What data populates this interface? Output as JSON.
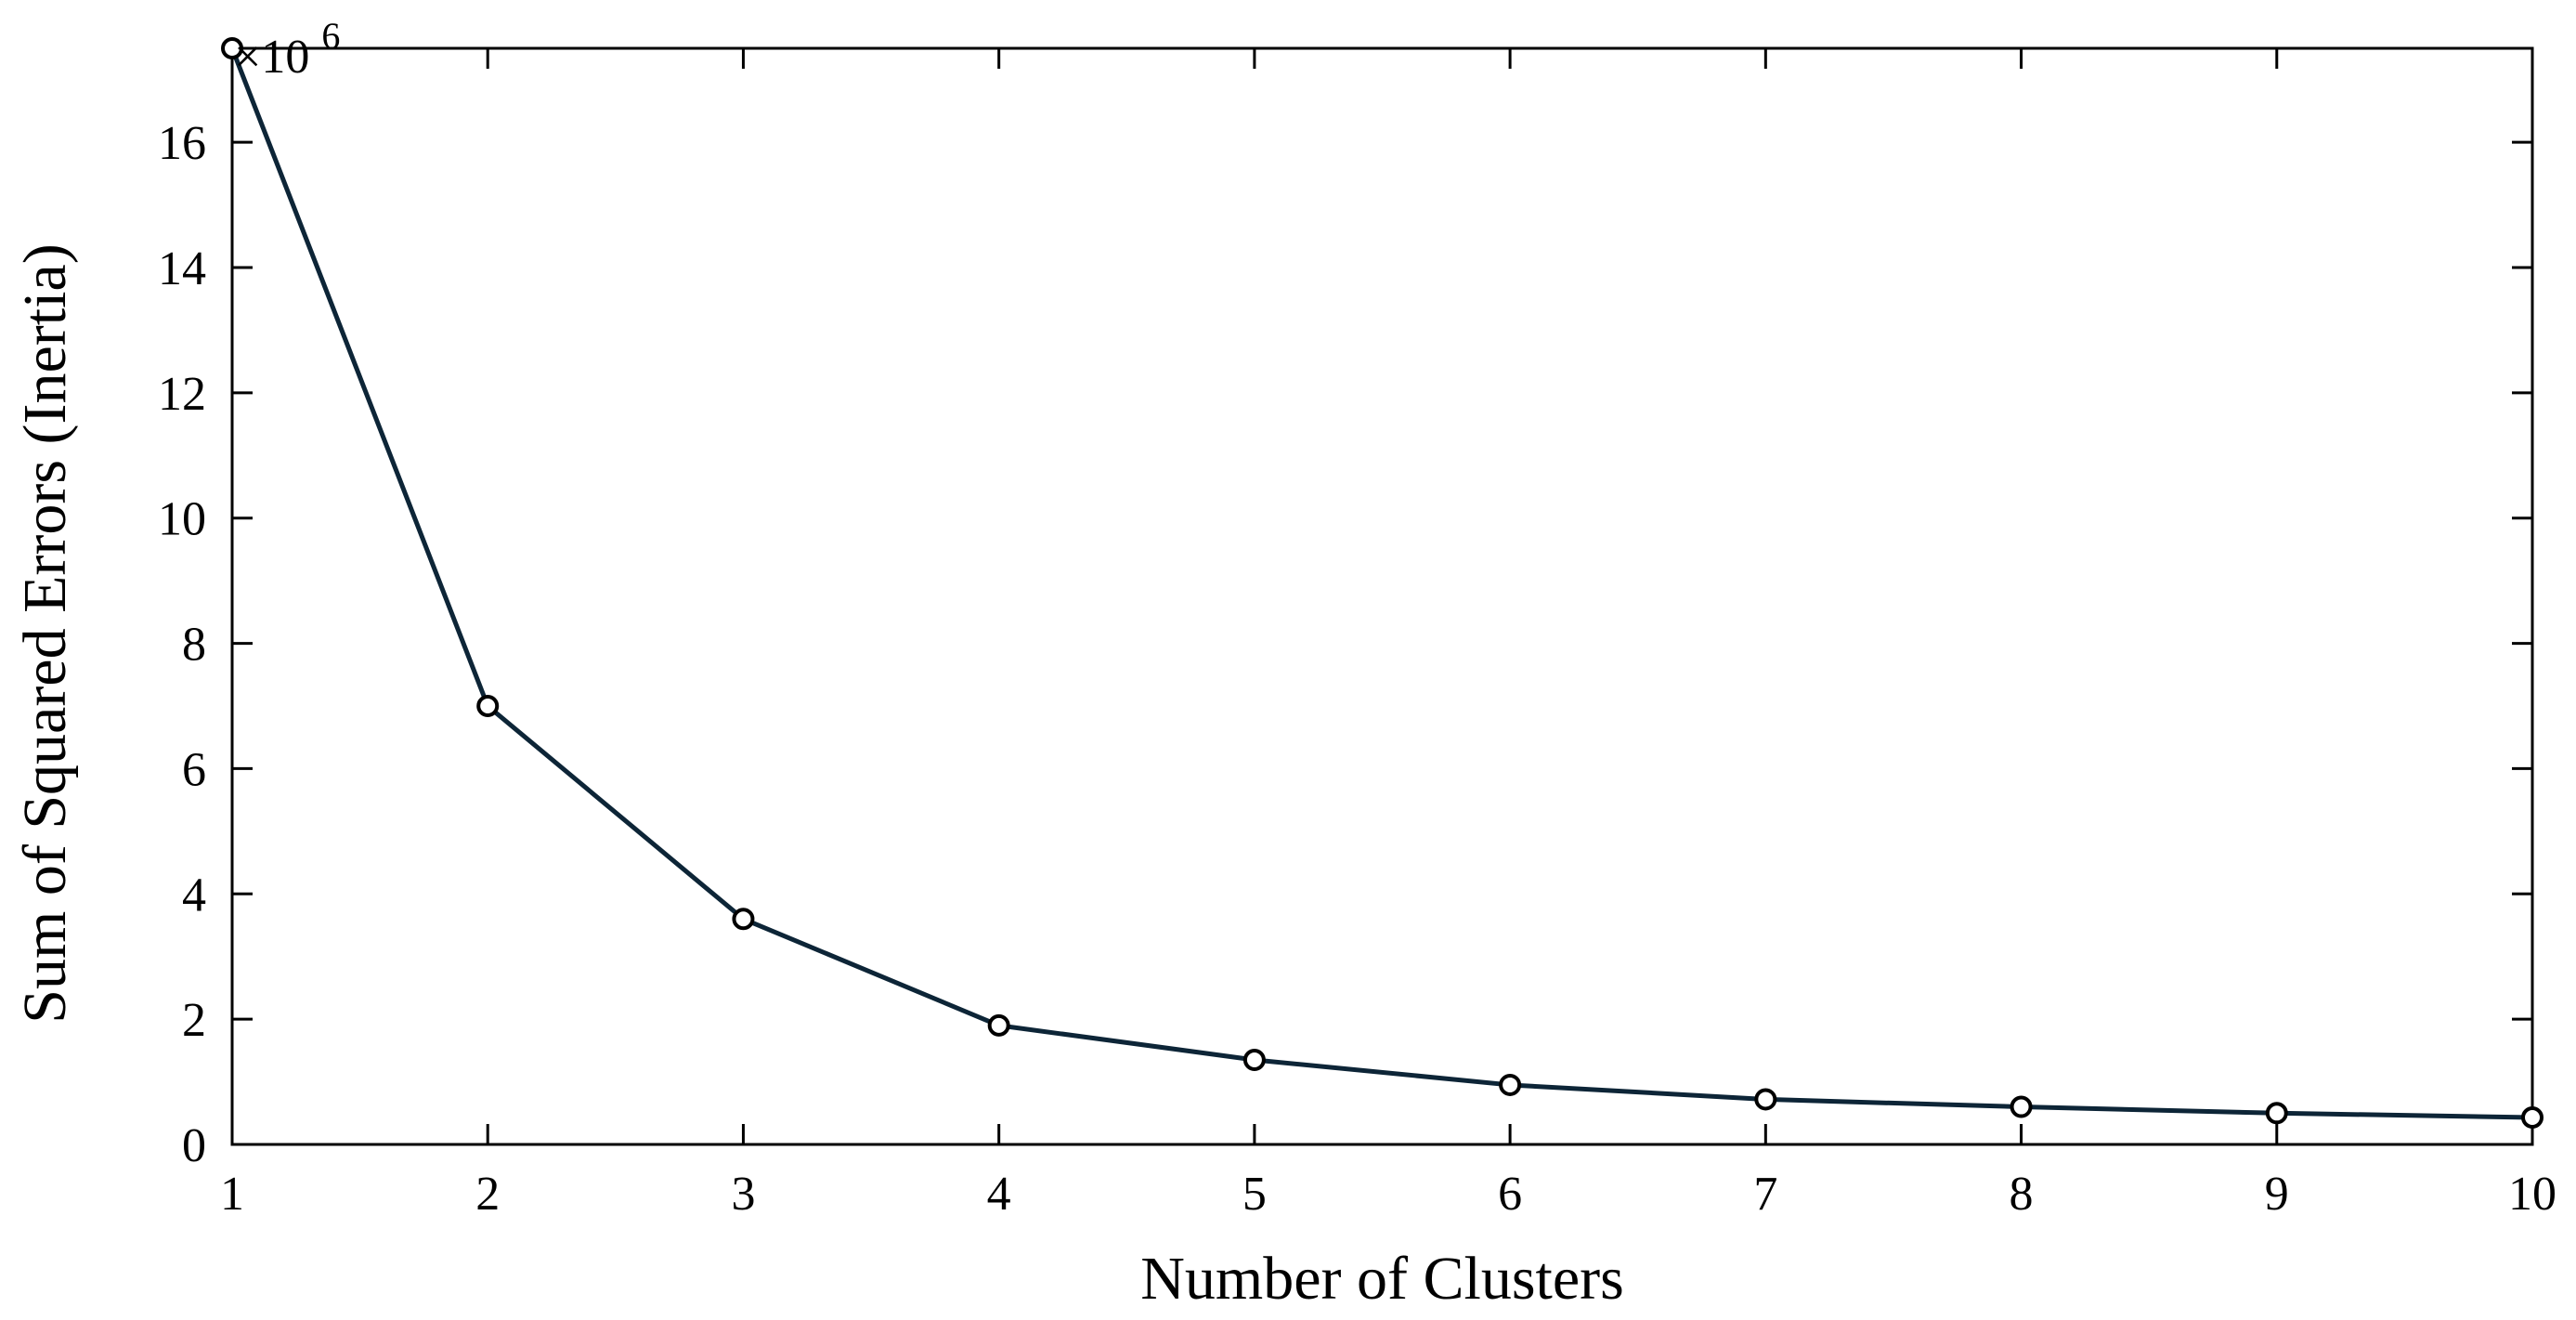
{
  "chart_data": {
    "type": "line",
    "title": "",
    "xlabel": "Number of Clusters",
    "ylabel": "Sum of Squared Errors (Inertia)",
    "y_multiplier_label": "×10",
    "y_multiplier_exponent": "6",
    "xlim": [
      1,
      10
    ],
    "ylim": [
      0,
      17.5
    ],
    "x_ticks": [
      1,
      2,
      3,
      4,
      5,
      6,
      7,
      8,
      9,
      10
    ],
    "y_ticks": [
      0,
      2,
      4,
      6,
      8,
      10,
      12,
      14,
      16
    ],
    "grid": false,
    "legend": "none",
    "series": [
      {
        "x": [
          1,
          2,
          3,
          4,
          5,
          6,
          7,
          8,
          9,
          10
        ],
        "values": [
          17.5,
          7.0,
          3.6,
          1.9,
          1.35,
          0.95,
          0.72,
          0.6,
          0.5,
          0.43
        ],
        "color": "#0d2537",
        "marker": "open-circle"
      }
    ]
  }
}
